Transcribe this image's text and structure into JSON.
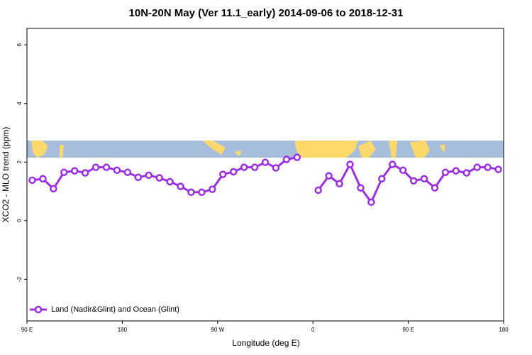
{
  "chart_data": {
    "type": "line",
    "title": "10N-20N May (Ver 11.1_early)   2014-09-06 to 2018-12-31",
    "x_label": "Longitude (deg E)",
    "y_label": "XCO2 - MLO trend (ppm)",
    "x": [
      95,
      105,
      115,
      125,
      135,
      145,
      155,
      165,
      175,
      185,
      195,
      205,
      215,
      225,
      235,
      245,
      255,
      265,
      275,
      285,
      295,
      305,
      315,
      325,
      335,
      345,
      355,
      365,
      375,
      385,
      395,
      405,
      415,
      425,
      435,
      445,
      455,
      465,
      475,
      485,
      495,
      505,
      515,
      525,
      535
    ],
    "series": [
      {
        "name": "Land (Nadir&Glint) and Ocean (Glint)",
        "color": "#9b30e0",
        "values": [
          1.38,
          1.43,
          1.09,
          1.65,
          1.7,
          1.63,
          1.82,
          1.82,
          1.72,
          1.65,
          1.48,
          1.55,
          1.46,
          1.33,
          1.17,
          0.97,
          0.97,
          1.07,
          1.58,
          1.67,
          1.82,
          1.82,
          1.99,
          1.8,
          2.09,
          2.16,
          null,
          1.04,
          1.53,
          1.26,
          1.92,
          1.12,
          0.63,
          1.43,
          1.92,
          1.72,
          1.36,
          1.43,
          1.12,
          1.65,
          1.7,
          1.63,
          1.82,
          1.82,
          1.75
        ]
      }
    ],
    "xlim": [
      90,
      540
    ],
    "xticks": [
      {
        "value": 90,
        "label": "90 E"
      },
      180,
      {
        "value": 270,
        "label": "90 W"
      },
      {
        "value": 360,
        "label": "0"
      },
      {
        "value": 450,
        "label": "90 E"
      },
      {
        "value": 540,
        "label": "180"
      }
    ],
    "ylim": [
      -3.42,
      6.56
    ],
    "yticks": [
      -2,
      0,
      2,
      4,
      6
    ],
    "legend": "bottom-left"
  }
}
